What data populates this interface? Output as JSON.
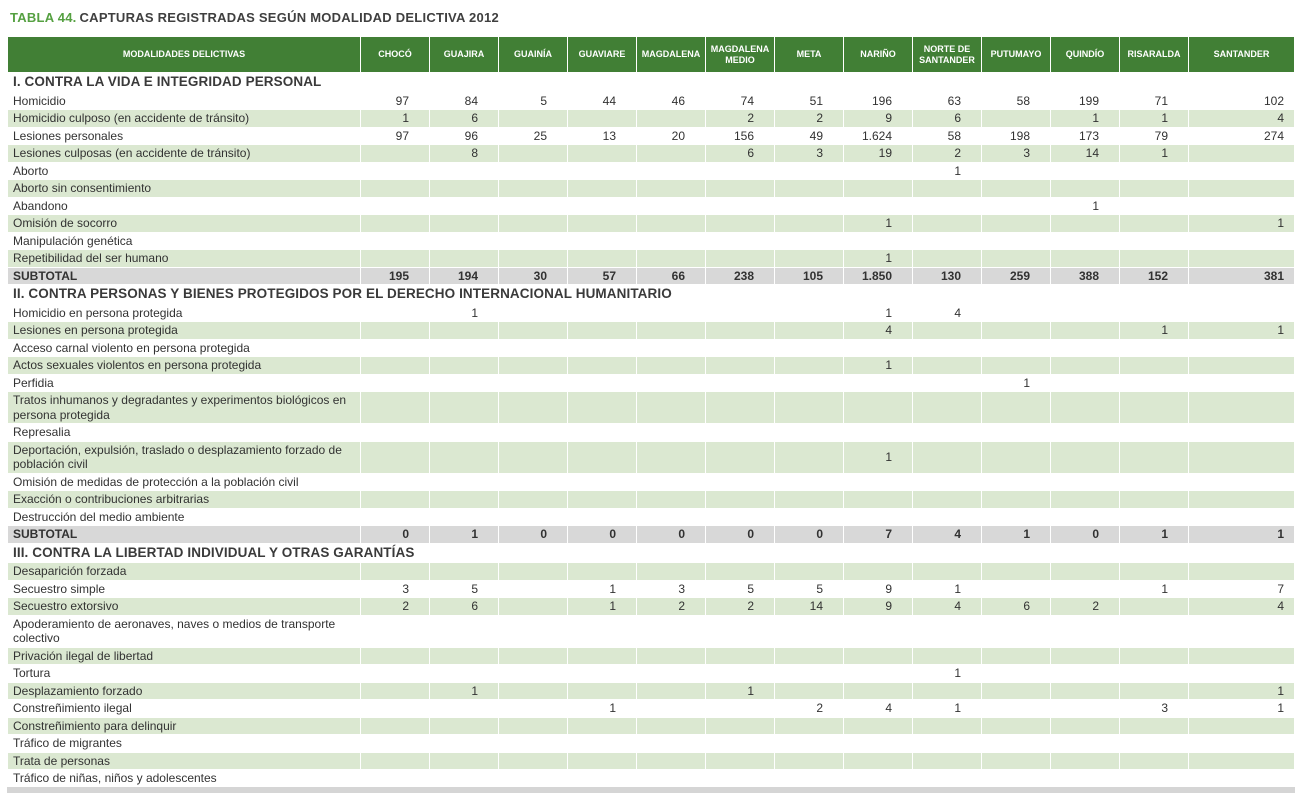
{
  "caption": {
    "label": "TABLA 44.",
    "title": "CAPTURAS REGISTRADAS SEGÚN MODALIDAD DELICTIVA 2012"
  },
  "colors": {
    "header_green": "#417f35",
    "caption_green": "#55a041",
    "row_green": "#dbe8d1",
    "subtotal_gray": "#d8d8d8"
  },
  "table": {
    "first_column_header": "MODALIDADES DELICTIVAS",
    "columns": [
      "CHOCÓ",
      "GUAJIRA",
      "GUAINÍA",
      "GUAVIARE",
      "MAGDALENA",
      "MAGDALENA MEDIO",
      "META",
      "NARIÑO",
      "NORTE DE SANTANDER",
      "PUTUMAYO",
      "QUINDÍO",
      "RISARALDA",
      "SANTANDER"
    ],
    "sections": [
      {
        "header": "I. CONTRA LA VIDA E INTEGRIDAD PERSONAL",
        "rows": [
          {
            "label": "Homicidio",
            "values": [
              "97",
              "84",
              "5",
              "44",
              "46",
              "74",
              "51",
              "196",
              "63",
              "58",
              "199",
              "71",
              "102"
            ]
          },
          {
            "label": "Homicidio culposo (en accidente de tránsito)",
            "values": [
              "1",
              "6",
              "",
              "",
              "",
              "2",
              "2",
              "9",
              "6",
              "",
              "1",
              "1",
              "4"
            ]
          },
          {
            "label": "Lesiones personales",
            "values": [
              "97",
              "96",
              "25",
              "13",
              "20",
              "156",
              "49",
              "1.624",
              "58",
              "198",
              "173",
              "79",
              "274"
            ]
          },
          {
            "label": "Lesiones culposas (en accidente de tránsito)",
            "values": [
              "",
              "8",
              "",
              "",
              "",
              "6",
              "3",
              "19",
              "2",
              "3",
              "14",
              "1",
              ""
            ]
          },
          {
            "label": "Aborto",
            "values": [
              "",
              "",
              "",
              "",
              "",
              "",
              "",
              "",
              "1",
              "",
              "",
              "",
              ""
            ]
          },
          {
            "label": "Aborto sin consentimiento",
            "values": [
              "",
              "",
              "",
              "",
              "",
              "",
              "",
              "",
              "",
              "",
              "",
              "",
              ""
            ]
          },
          {
            "label": "Abandono",
            "values": [
              "",
              "",
              "",
              "",
              "",
              "",
              "",
              "",
              "",
              "",
              "1",
              "",
              ""
            ]
          },
          {
            "label": "Omisión de socorro",
            "values": [
              "",
              "",
              "",
              "",
              "",
              "",
              "",
              "1",
              "",
              "",
              "",
              "",
              "1"
            ]
          },
          {
            "label": "Manipulación genética",
            "values": [
              "",
              "",
              "",
              "",
              "",
              "",
              "",
              "",
              "",
              "",
              "",
              "",
              ""
            ]
          },
          {
            "label": "Repetibilidad del ser humano",
            "values": [
              "",
              "",
              "",
              "",
              "",
              "",
              "",
              "1",
              "",
              "",
              "",
              "",
              ""
            ]
          }
        ],
        "subtotal": {
          "label": "SUBTOTAL",
          "values": [
            "195",
            "194",
            "30",
            "57",
            "66",
            "238",
            "105",
            "1.850",
            "130",
            "259",
            "388",
            "152",
            "381"
          ]
        }
      },
      {
        "header": "II. CONTRA PERSONAS Y BIENES PROTEGIDOS POR EL DERECHO INTERNACIONAL HUMANITARIO",
        "rows": [
          {
            "label": "Homicidio en persona protegida",
            "values": [
              "",
              "1",
              "",
              "",
              "",
              "",
              "",
              "1",
              "4",
              "",
              "",
              "",
              ""
            ]
          },
          {
            "label": "Lesiones en persona protegida",
            "values": [
              "",
              "",
              "",
              "",
              "",
              "",
              "",
              "4",
              "",
              "",
              "",
              "1",
              "1"
            ]
          },
          {
            "label": "Acceso carnal violento en persona protegida",
            "values": [
              "",
              "",
              "",
              "",
              "",
              "",
              "",
              "",
              "",
              "",
              "",
              "",
              ""
            ]
          },
          {
            "label": "Actos sexuales violentos en persona protegida",
            "values": [
              "",
              "",
              "",
              "",
              "",
              "",
              "",
              "1",
              "",
              "",
              "",
              "",
              ""
            ]
          },
          {
            "label": "Perfidia",
            "values": [
              "",
              "",
              "",
              "",
              "",
              "",
              "",
              "",
              "",
              "1",
              "",
              "",
              ""
            ]
          },
          {
            "label": "Tratos inhumanos y degradantes y experimentos biológicos en persona protegida",
            "values": [
              "",
              "",
              "",
              "",
              "",
              "",
              "",
              "",
              "",
              "",
              "",
              "",
              ""
            ]
          },
          {
            "label": "Represalia",
            "values": [
              "",
              "",
              "",
              "",
              "",
              "",
              "",
              "",
              "",
              "",
              "",
              "",
              ""
            ]
          },
          {
            "label": "Deportación, expulsión, traslado o desplazamiento forzado de población civil",
            "values": [
              "",
              "",
              "",
              "",
              "",
              "",
              "",
              "1",
              "",
              "",
              "",
              "",
              ""
            ]
          },
          {
            "label": "Omisión de medidas de protección a la población civil",
            "values": [
              "",
              "",
              "",
              "",
              "",
              "",
              "",
              "",
              "",
              "",
              "",
              "",
              ""
            ]
          },
          {
            "label": "Exacción o contribuciones arbitrarias",
            "values": [
              "",
              "",
              "",
              "",
              "",
              "",
              "",
              "",
              "",
              "",
              "",
              "",
              ""
            ]
          },
          {
            "label": "Destrucción del medio ambiente",
            "values": [
              "",
              "",
              "",
              "",
              "",
              "",
              "",
              "",
              "",
              "",
              "",
              "",
              ""
            ]
          }
        ],
        "subtotal": {
          "label": "SUBTOTAL",
          "values": [
            "0",
            "1",
            "0",
            "0",
            "0",
            "0",
            "0",
            "7",
            "4",
            "1",
            "0",
            "1",
            "1"
          ]
        }
      },
      {
        "header": "III. CONTRA LA LIBERTAD INDIVIDUAL Y OTRAS GARANTÍAS",
        "rows": [
          {
            "label": "Desaparición forzada",
            "values": [
              "",
              "",
              "",
              "",
              "",
              "",
              "",
              "",
              "",
              "",
              "",
              "",
              ""
            ]
          },
          {
            "label": "Secuestro simple",
            "values": [
              "3",
              "5",
              "",
              "1",
              "3",
              "5",
              "5",
              "9",
              "1",
              "",
              "",
              "1",
              "7"
            ]
          },
          {
            "label": "Secuestro extorsivo",
            "values": [
              "2",
              "6",
              "",
              "1",
              "2",
              "2",
              "14",
              "9",
              "4",
              "6",
              "2",
              "",
              "4"
            ]
          },
          {
            "label": "Apoderamiento de aeronaves, naves o medios de transporte colectivo",
            "values": [
              "",
              "",
              "",
              "",
              "",
              "",
              "",
              "",
              "",
              "",
              "",
              "",
              ""
            ]
          },
          {
            "label": "Privación ilegal de libertad",
            "values": [
              "",
              "",
              "",
              "",
              "",
              "",
              "",
              "",
              "",
              "",
              "",
              "",
              ""
            ]
          },
          {
            "label": "Tortura",
            "values": [
              "",
              "",
              "",
              "",
              "",
              "",
              "",
              "",
              "1",
              "",
              "",
              "",
              ""
            ]
          },
          {
            "label": "Desplazamiento forzado",
            "values": [
              "",
              "1",
              "",
              "",
              "",
              "1",
              "",
              "",
              "",
              "",
              "",
              "",
              "1"
            ]
          },
          {
            "label": "Constreñimiento ilegal",
            "values": [
              "",
              "",
              "",
              "1",
              "",
              "",
              "2",
              "4",
              "1",
              "",
              "",
              "3",
              "1"
            ]
          },
          {
            "label": "Constreñimiento para delinquir",
            "values": [
              "",
              "",
              "",
              "",
              "",
              "",
              "",
              "",
              "",
              "",
              "",
              "",
              ""
            ]
          },
          {
            "label": "Tráfico de migrantes",
            "values": [
              "",
              "",
              "",
              "",
              "",
              "",
              "",
              "",
              "",
              "",
              "",
              "",
              ""
            ]
          },
          {
            "label": "Trata de personas",
            "values": [
              "",
              "",
              "",
              "",
              "",
              "",
              "",
              "",
              "",
              "",
              "",
              "",
              ""
            ]
          },
          {
            "label": "Tráfico de niñas, niños y adolescentes",
            "values": [
              "",
              "",
              "",
              "",
              "",
              "",
              "",
              "",
              "",
              "",
              "",
              "",
              ""
            ]
          }
        ]
      }
    ]
  }
}
